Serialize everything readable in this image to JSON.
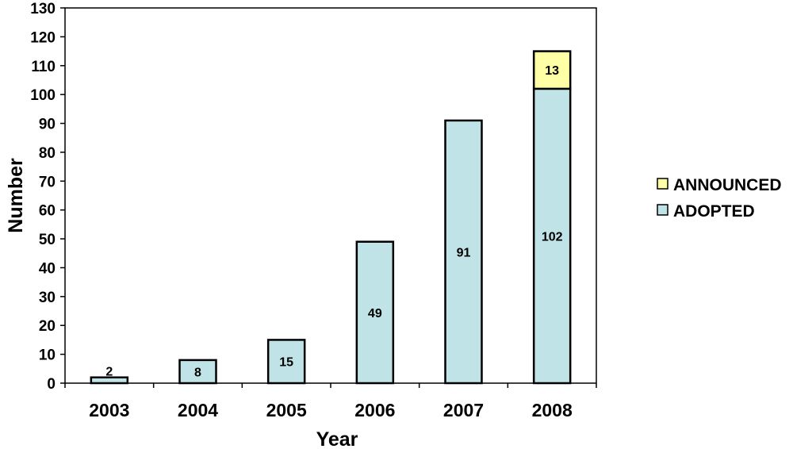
{
  "chart_data": {
    "type": "bar",
    "stacked": true,
    "categories": [
      "2003",
      "2004",
      "2005",
      "2006",
      "2007",
      "2008"
    ],
    "series": [
      {
        "name": "ADOPTED",
        "values": [
          2,
          8,
          15,
          49,
          91,
          102
        ],
        "color": "#bfe3e6"
      },
      {
        "name": "ANNOUNCED",
        "values": [
          0,
          0,
          0,
          0,
          0,
          13
        ],
        "color": "#ffffa6"
      }
    ],
    "data_labels": {
      "ADOPTED": [
        "2",
        "8",
        "15",
        "49",
        "91",
        "102"
      ],
      "ANNOUNCED": [
        "",
        "",
        "",
        "",
        "",
        "13"
      ]
    },
    "xlabel": "Year",
    "ylabel": "Number",
    "ylim": [
      0,
      130
    ],
    "yticks": [
      0,
      10,
      20,
      30,
      40,
      50,
      60,
      70,
      80,
      90,
      100,
      110,
      120,
      130
    ],
    "grid": false,
    "legend": {
      "position": "right",
      "entries": [
        "ANNOUNCED",
        "ADOPTED"
      ]
    }
  }
}
